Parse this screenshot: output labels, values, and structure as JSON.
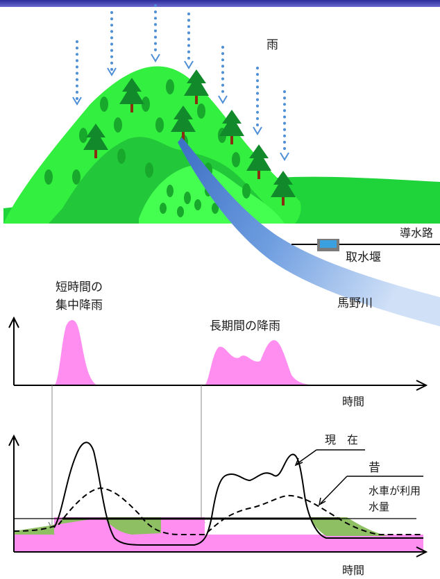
{
  "labels": {
    "rain": "雨",
    "headrace": "導水路",
    "intake_weir": "取水堰",
    "river": "馬野川",
    "short_rain_line1": "短時間の",
    "short_rain_line2": "集中降雨",
    "long_rain": "長期間の降雨",
    "x_axis_top": "時間",
    "x_axis_bottom": "時間",
    "present": "現　在",
    "past": "昔",
    "usage_line1": "水車が利用",
    "usage_line2": "水量"
  },
  "colors": {
    "mountain_back": "#1fd43a",
    "mountain_light": "#33f040",
    "mountain_mid": "#22c83a",
    "mountain_dots": "#17a82c",
    "tree": "#128a2b",
    "trunk": "#8a2e12",
    "rain_drops": "#4f8fd6",
    "river": "#6f9ee0",
    "rain_fill": "#ff8ef0",
    "baseflow_fill": "#ff8ef0",
    "usable_band": "#8fbf63",
    "top_band": "#3f3fb3"
  }
}
